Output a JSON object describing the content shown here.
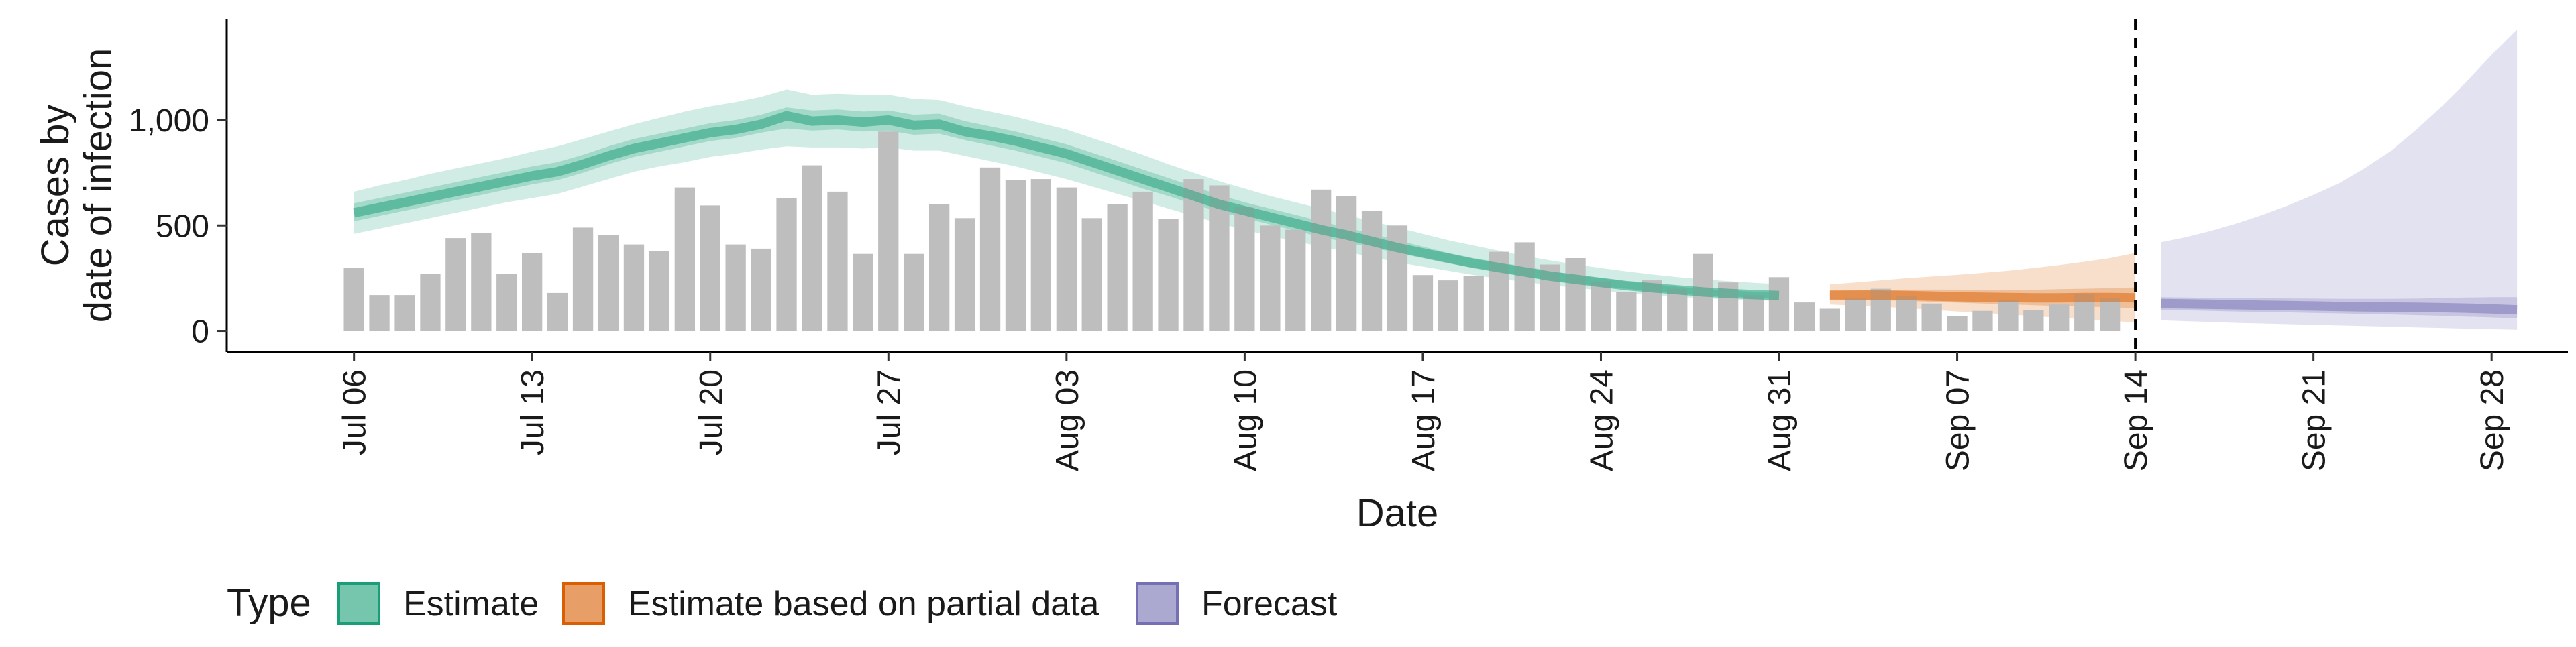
{
  "chart_data": {
    "type": "bar",
    "title": "",
    "xlabel": "Date",
    "ylabel": "Cases by\ndate of infection",
    "ylim": [
      -100,
      1480
    ],
    "xlim": [
      "2020-07-01",
      "2020-10-01"
    ],
    "grid": false,
    "y_ticks": [
      0,
      500,
      1000
    ],
    "y_tick_labels": [
      "0",
      "500",
      "1,000"
    ],
    "x_ticks": [
      "2020-07-06",
      "2020-07-13",
      "2020-07-20",
      "2020-07-27",
      "2020-08-03",
      "2020-08-10",
      "2020-08-17",
      "2020-08-24",
      "2020-08-31",
      "2020-09-07",
      "2020-09-14",
      "2020-09-21",
      "2020-09-28"
    ],
    "x_tick_labels": [
      "Jul 06",
      "Jul 13",
      "Jul 20",
      "Jul 27",
      "Aug 03",
      "Aug 10",
      "Aug 17",
      "Aug 24",
      "Aug 31",
      "Sep 07",
      "Sep 14",
      "Sep 21",
      "Sep 28"
    ],
    "vline_date": "2020-09-14",
    "bars": {
      "start_date": "2020-07-06",
      "color": "#bebebe",
      "values": [
        300,
        170,
        170,
        270,
        440,
        465,
        270,
        370,
        180,
        490,
        455,
        410,
        380,
        680,
        595,
        410,
        390,
        630,
        785,
        660,
        365,
        945,
        365,
        600,
        535,
        775,
        715,
        720,
        680,
        535,
        600,
        660,
        530,
        720,
        690,
        590,
        500,
        480,
        670,
        640,
        570,
        500,
        265,
        240,
        260,
        375,
        420,
        315,
        345,
        235,
        185,
        240,
        200,
        365,
        230,
        170,
        255,
        135,
        105,
        155,
        200,
        165,
        130,
        70,
        95,
        145,
        100,
        125,
        175,
        155
      ]
    },
    "legend": {
      "title": "Type",
      "position": "bottom",
      "items": [
        {
          "label": "Estimate",
          "color": "#1b9e77"
        },
        {
          "label": "Estimate based on partial data",
          "color": "#d95f02"
        },
        {
          "label": "Forecast",
          "color": "#7570b3"
        }
      ]
    },
    "series": [
      {
        "name": "Estimate",
        "color": "#1b9e77",
        "start_date": "2020-07-06",
        "median": [
          560,
          585,
          610,
          635,
          660,
          685,
          710,
          735,
          755,
          790,
          830,
          865,
          890,
          915,
          940,
          955,
          980,
          1020,
          995,
          1000,
          990,
          1000,
          975,
          980,
          945,
          925,
          900,
          870,
          840,
          800,
          760,
          720,
          680,
          640,
          600,
          570,
          540,
          510,
          480,
          455,
          425,
          395,
          370,
          345,
          320,
          300,
          280,
          260,
          245,
          230,
          215,
          205,
          195,
          185,
          178,
          172,
          168
        ],
        "lower_50": [
          520,
          545,
          570,
          595,
          620,
          645,
          670,
          695,
          715,
          750,
          790,
          825,
          850,
          875,
          900,
          915,
          940,
          960,
          950,
          955,
          945,
          950,
          930,
          935,
          905,
          880,
          855,
          825,
          795,
          755,
          715,
          675,
          640,
          600,
          565,
          535,
          505,
          475,
          445,
          420,
          395,
          370,
          345,
          320,
          300,
          280,
          260,
          240,
          225,
          212,
          200,
          190,
          180,
          170,
          164,
          158,
          154
        ],
        "upper_50": [
          605,
          630,
          655,
          680,
          705,
          730,
          755,
          780,
          800,
          835,
          875,
          910,
          935,
          960,
          985,
          1000,
          1025,
          1060,
          1045,
          1050,
          1040,
          1045,
          1025,
          1030,
          995,
          970,
          945,
          915,
          885,
          845,
          805,
          765,
          725,
          685,
          645,
          610,
          580,
          550,
          520,
          490,
          460,
          430,
          400,
          370,
          345,
          325,
          305,
          285,
          265,
          250,
          235,
          222,
          210,
          200,
          192,
          186,
          182
        ],
        "lower_90": [
          460,
          485,
          510,
          535,
          560,
          585,
          610,
          630,
          650,
          685,
          720,
          755,
          780,
          800,
          825,
          840,
          860,
          875,
          870,
          870,
          865,
          870,
          855,
          855,
          830,
          805,
          780,
          750,
          720,
          685,
          650,
          615,
          580,
          545,
          510,
          480,
          450,
          425,
          400,
          375,
          350,
          325,
          305,
          285,
          265,
          248,
          232,
          218,
          205,
          192,
          180,
          170,
          162,
          155,
          150,
          146,
          142
        ],
        "upper_90": [
          660,
          690,
          715,
          745,
          770,
          795,
          820,
          850,
          875,
          910,
          945,
          980,
          1010,
          1040,
          1065,
          1085,
          1110,
          1145,
          1120,
          1125,
          1120,
          1120,
          1100,
          1095,
          1065,
          1040,
          1015,
          985,
          955,
          915,
          875,
          835,
          790,
          750,
          710,
          675,
          640,
          610,
          580,
          550,
          520,
          490,
          460,
          430,
          405,
          380,
          355,
          335,
          315,
          298,
          282,
          268,
          255,
          245,
          236,
          228,
          222
        ]
      },
      {
        "name": "Estimate based on partial data",
        "color": "#d95f02",
        "start_date": "2020-09-02",
        "median": [
          170,
          170,
          170,
          168,
          165,
          162,
          160,
          158,
          157,
          157,
          158,
          158,
          157
        ],
        "lower_50": [
          150,
          148,
          146,
          142,
          138,
          134,
          130,
          126,
          122,
          118,
          115,
          112,
          108
        ],
        "upper_50": [
          190,
          192,
          194,
          196,
          196,
          196,
          195,
          194,
          195,
          198,
          200,
          203,
          206
        ],
        "lower_90": [
          125,
          120,
          115,
          108,
          100,
          92,
          85,
          78,
          70,
          62,
          55,
          48,
          40
        ],
        "upper_90": [
          220,
          230,
          240,
          250,
          258,
          266,
          275,
          285,
          298,
          312,
          328,
          345,
          370
        ]
      },
      {
        "name": "Forecast",
        "color": "#7570b3",
        "start_date": "2020-09-15",
        "median": [
          130,
          128,
          126,
          124,
          122,
          120,
          118,
          116,
          114,
          113,
          112,
          110,
          108,
          104,
          100
        ],
        "lower_50": [
          100,
          98,
          95,
          92,
          90,
          88,
          85,
          83,
          80,
          78,
          75,
          72,
          68,
          64,
          60
        ],
        "upper_50": [
          160,
          158,
          157,
          156,
          155,
          154,
          153,
          152,
          152,
          152,
          153,
          155,
          158,
          160,
          160
        ],
        "lower_90": [
          50,
          46,
          42,
          38,
          35,
          32,
          29,
          26,
          23,
          20,
          17,
          14,
          11,
          8,
          6
        ],
        "upper_90": [
          420,
          445,
          475,
          510,
          550,
          595,
          645,
          700,
          770,
          850,
          950,
          1060,
          1180,
          1310,
          1430
        ]
      }
    ]
  }
}
